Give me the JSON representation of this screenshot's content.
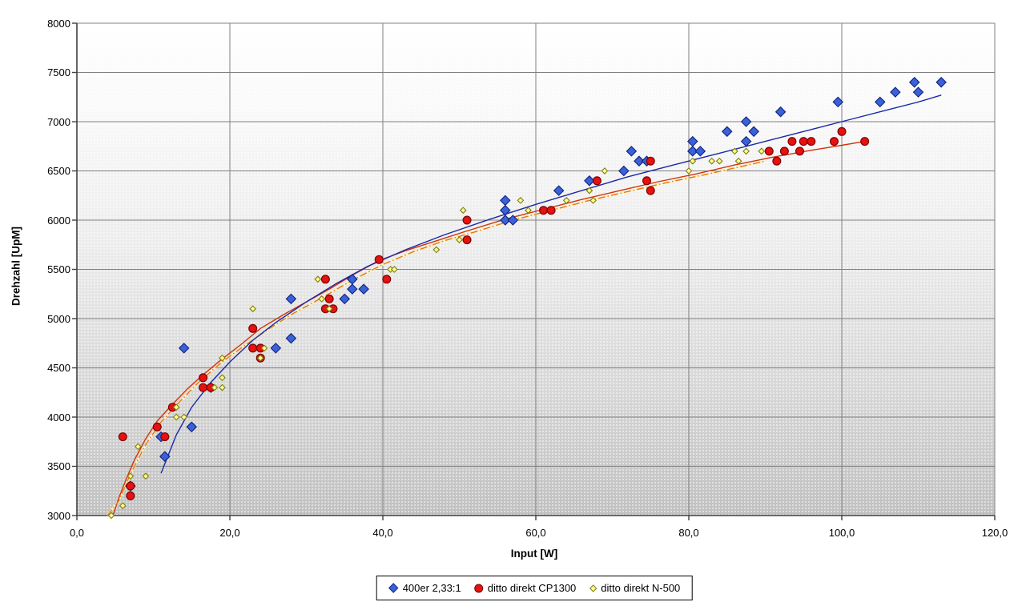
{
  "chart_data": {
    "type": "scatter",
    "title": "",
    "x_axis": {
      "label": "Input [W]",
      "min": 0,
      "max": 120,
      "ticks": [
        0,
        20,
        40,
        60,
        80,
        100,
        120
      ],
      "tick_labels": [
        "0,0",
        "20,0",
        "40,0",
        "60,0",
        "80,0",
        "100,0",
        "120,0"
      ]
    },
    "y_axis": {
      "label": "Drehzahl [UpM]",
      "min": 3000,
      "max": 8000,
      "ticks": [
        3000,
        3500,
        4000,
        4500,
        5000,
        5500,
        6000,
        6500,
        7000,
        7500,
        8000
      ],
      "tick_labels": [
        "3000",
        "3500",
        "4000",
        "4500",
        "5000",
        "5500",
        "6000",
        "6500",
        "7000",
        "7500",
        "8000"
      ]
    },
    "grid": true,
    "grid_color": "#808080",
    "axis_color": "#404040",
    "legend_position": "bottom",
    "plot_bg": {
      "top_color": "#ffffff",
      "bottom_color": "#c0c0c0"
    },
    "series": [
      {
        "name": "400er 2,33:1",
        "marker": "diamond",
        "marker_color": "#3a62d8",
        "marker_border": "#10217e",
        "trend_style": "solid",
        "trend_color": "#1b2aa6",
        "points": [
          [
            7,
            3300
          ],
          [
            11,
            3800
          ],
          [
            11.5,
            3600
          ],
          [
            14,
            4700
          ],
          [
            15,
            3900
          ],
          [
            17.5,
            4300
          ],
          [
            26,
            4700
          ],
          [
            28,
            4800
          ],
          [
            28,
            5200
          ],
          [
            35,
            5200
          ],
          [
            36,
            5400
          ],
          [
            36,
            5300
          ],
          [
            37.5,
            5300
          ],
          [
            56,
            6200
          ],
          [
            56,
            6100
          ],
          [
            56,
            6000
          ],
          [
            57,
            6000
          ],
          [
            63,
            6300
          ],
          [
            67,
            6400
          ],
          [
            71.5,
            6500
          ],
          [
            72.5,
            6700
          ],
          [
            73.5,
            6600
          ],
          [
            74.5,
            6600
          ],
          [
            80.5,
            6800
          ],
          [
            80.5,
            6700
          ],
          [
            81.5,
            6700
          ],
          [
            85,
            6900
          ],
          [
            87.5,
            7000
          ],
          [
            87.5,
            6800
          ],
          [
            88.5,
            6900
          ],
          [
            92,
            7100
          ],
          [
            99.5,
            7200
          ],
          [
            105,
            7200
          ],
          [
            107,
            7300
          ],
          [
            109.5,
            7400
          ],
          [
            110,
            7300
          ],
          [
            113,
            7400
          ]
        ],
        "trend": [
          [
            11,
            3430
          ],
          [
            13,
            3820
          ],
          [
            15,
            4100
          ],
          [
            17.5,
            4350
          ],
          [
            20,
            4560
          ],
          [
            23,
            4780
          ],
          [
            26,
            4960
          ],
          [
            30,
            5170
          ],
          [
            34,
            5360
          ],
          [
            38,
            5530
          ],
          [
            43,
            5700
          ],
          [
            48,
            5850
          ],
          [
            54,
            6010
          ],
          [
            60,
            6160
          ],
          [
            66,
            6300
          ],
          [
            72,
            6440
          ],
          [
            78,
            6560
          ],
          [
            84,
            6680
          ],
          [
            90,
            6800
          ],
          [
            96,
            6920
          ],
          [
            101,
            7020
          ],
          [
            106,
            7120
          ],
          [
            110,
            7200
          ],
          [
            113,
            7270
          ]
        ]
      },
      {
        "name": "ditto direkt CP1300",
        "marker": "circle",
        "marker_color": "#e41210",
        "marker_border": "#7d0000",
        "trend_style": "solid",
        "trend_color": "#d2330a",
        "points": [
          [
            6,
            3800
          ],
          [
            7,
            3300
          ],
          [
            7,
            3200
          ],
          [
            10.5,
            3900
          ],
          [
            11.5,
            3800
          ],
          [
            12.5,
            4100
          ],
          [
            16.5,
            4400
          ],
          [
            16.5,
            4300
          ],
          [
            17.5,
            4300
          ],
          [
            23,
            4900
          ],
          [
            23,
            4700
          ],
          [
            24,
            4700
          ],
          [
            24,
            4600
          ],
          [
            32.5,
            5400
          ],
          [
            33,
            5200
          ],
          [
            32.5,
            5100
          ],
          [
            33.5,
            5100
          ],
          [
            39.5,
            5600
          ],
          [
            40.5,
            5400
          ],
          [
            51,
            6000
          ],
          [
            51,
            5800
          ],
          [
            61,
            6100
          ],
          [
            62,
            6100
          ],
          [
            68,
            6400
          ],
          [
            74.5,
            6400
          ],
          [
            75,
            6600
          ],
          [
            75,
            6300
          ],
          [
            90.5,
            6700
          ],
          [
            91.5,
            6600
          ],
          [
            92.5,
            6700
          ],
          [
            94.5,
            6700
          ],
          [
            93.5,
            6800
          ],
          [
            95,
            6800
          ],
          [
            96,
            6800
          ],
          [
            99,
            6800
          ],
          [
            100,
            6900
          ],
          [
            103,
            6800
          ]
        ],
        "trend": [
          [
            4.7,
            3000
          ],
          [
            5.5,
            3180
          ],
          [
            6.5,
            3380
          ],
          [
            7.5,
            3560
          ],
          [
            9,
            3780
          ],
          [
            10.5,
            3960
          ],
          [
            12.5,
            4130
          ],
          [
            14.5,
            4290
          ],
          [
            16.5,
            4430
          ],
          [
            19,
            4590
          ],
          [
            21.5,
            4740
          ],
          [
            24,
            4900
          ],
          [
            27,
            5040
          ],
          [
            30,
            5170
          ],
          [
            33,
            5300
          ],
          [
            36,
            5440
          ],
          [
            39.5,
            5590
          ],
          [
            43,
            5690
          ],
          [
            47,
            5790
          ],
          [
            51,
            5890
          ],
          [
            56,
            6010
          ],
          [
            61,
            6110
          ],
          [
            66,
            6210
          ],
          [
            71,
            6300
          ],
          [
            76,
            6390
          ],
          [
            81,
            6470
          ],
          [
            86,
            6560
          ],
          [
            91,
            6640
          ],
          [
            96,
            6710
          ],
          [
            100,
            6760
          ],
          [
            103,
            6800
          ]
        ]
      },
      {
        "name": "ditto direkt N-500",
        "marker": "small-diamond",
        "marker_color": "#ffff87",
        "marker_border": "#7c7c1e",
        "trend_style": "dash-dot",
        "trend_color": "#e07714",
        "trend_underlay_color": "#fff3bb",
        "points": [
          [
            4.5,
            3000
          ],
          [
            6,
            3100
          ],
          [
            7,
            3400
          ],
          [
            9,
            3400
          ],
          [
            8,
            3700
          ],
          [
            13,
            4100
          ],
          [
            13,
            4000
          ],
          [
            14,
            4000
          ],
          [
            18,
            4300
          ],
          [
            19,
            4300
          ],
          [
            19,
            4400
          ],
          [
            19,
            4600
          ],
          [
            23,
            5100
          ],
          [
            24,
            4600
          ],
          [
            24.5,
            4700
          ],
          [
            31.5,
            5400
          ],
          [
            32,
            5200
          ],
          [
            33,
            5100
          ],
          [
            41,
            5500
          ],
          [
            41.5,
            5500
          ],
          [
            47,
            5700
          ],
          [
            50,
            5800
          ],
          [
            50.5,
            6100
          ],
          [
            58,
            6200
          ],
          [
            59,
            6100
          ],
          [
            64,
            6200
          ],
          [
            67,
            6300
          ],
          [
            67.5,
            6200
          ],
          [
            69,
            6500
          ],
          [
            80,
            6500
          ],
          [
            80.5,
            6600
          ],
          [
            83,
            6600
          ],
          [
            84,
            6600
          ],
          [
            86.5,
            6600
          ],
          [
            86,
            6700
          ],
          [
            87.5,
            6700
          ],
          [
            89.5,
            6700
          ]
        ],
        "trend": [
          [
            4,
            3000
          ],
          [
            5.5,
            3150
          ],
          [
            7,
            3420
          ],
          [
            9,
            3720
          ],
          [
            11,
            3950
          ],
          [
            13.5,
            4160
          ],
          [
            16,
            4360
          ],
          [
            19,
            4560
          ],
          [
            22,
            4730
          ],
          [
            25,
            4890
          ],
          [
            28,
            5040
          ],
          [
            32,
            5210
          ],
          [
            36,
            5390
          ],
          [
            40,
            5550
          ],
          [
            44,
            5680
          ],
          [
            48,
            5790
          ],
          [
            52,
            5880
          ],
          [
            57,
            6000
          ],
          [
            62,
            6100
          ],
          [
            67,
            6200
          ],
          [
            72,
            6290
          ],
          [
            77,
            6380
          ],
          [
            82,
            6460
          ],
          [
            86,
            6530
          ],
          [
            90,
            6600
          ]
        ]
      }
    ]
  }
}
